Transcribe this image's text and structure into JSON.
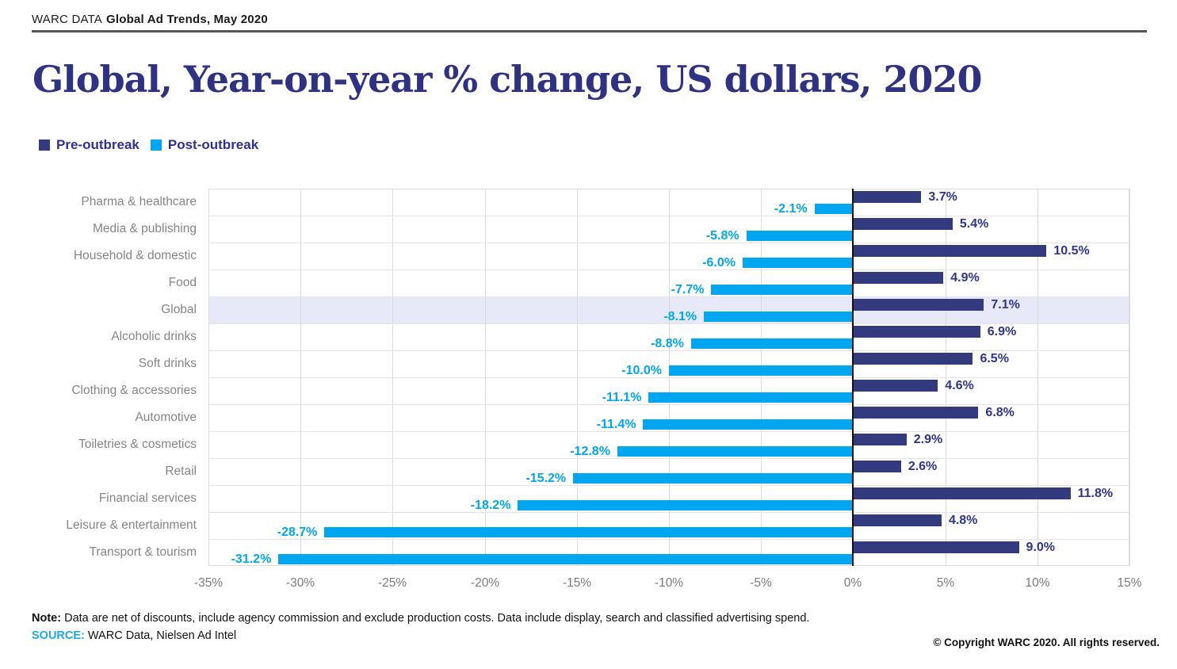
{
  "header": {
    "brand": "WARC DATA",
    "publication": "Global Ad Trends, May 2020"
  },
  "title": "Global, Year-on-year % change, US dollars, 2020",
  "legend": [
    {
      "key": "pre-outbreak",
      "label": "Pre-outbreak",
      "color": "#333b7e"
    },
    {
      "key": "post-outbreak",
      "label": "Post-outbreak",
      "color": "#00a6f0"
    }
  ],
  "chart_data": {
    "type": "bar",
    "orientation": "horizontal",
    "title": "Global, Year-on-year % change, US dollars, 2020",
    "categories": [
      "Pharma & healthcare",
      "Media & publishing",
      "Household & domestic",
      "Food",
      "Global",
      "Alcoholic drinks",
      "Soft drinks",
      "Clothing & accessories",
      "Automotive",
      "Toiletries & cosmetics",
      "Retail",
      "Financial services",
      "Leisure & entertainment",
      "Transport & tourism"
    ],
    "series": [
      {
        "name": "Pre-outbreak",
        "color": "#333b7e",
        "values": [
          3.7,
          5.4,
          10.5,
          4.9,
          7.1,
          6.9,
          6.5,
          4.6,
          6.8,
          2.9,
          2.6,
          11.8,
          4.8,
          9.0
        ]
      },
      {
        "name": "Post-outbreak",
        "color": "#00a6f0",
        "values": [
          -2.1,
          -5.8,
          -6.0,
          -7.7,
          -8.1,
          -8.8,
          -10.0,
          -11.1,
          -11.4,
          -12.8,
          -15.2,
          -18.2,
          -28.7,
          -31.2
        ]
      }
    ],
    "highlighted_category": "Global",
    "xlim": [
      -35,
      15
    ],
    "tick_values": [
      -35,
      -30,
      -25,
      -20,
      -15,
      -10,
      -5,
      0,
      5,
      10,
      15
    ],
    "tick_labels": [
      "-35%",
      "-30%",
      "-25%",
      "-20%",
      "-15%",
      "-10%",
      "-5%",
      "0%",
      "5%",
      "10%",
      "15%"
    ],
    "grid": true,
    "legend_position": "top-left",
    "value_label_format": "0.0%"
  },
  "footer": {
    "note_label": "Note:",
    "note_text": " Data are net of discounts, include agency commission and exclude production costs. Data include display, search and classified advertising spend.",
    "source_label": "SOURCE:",
    "source_text": " WARC Data, Nielsen Ad Intel",
    "copyright": "© Copyright WARC 2020. All rights reserved."
  }
}
